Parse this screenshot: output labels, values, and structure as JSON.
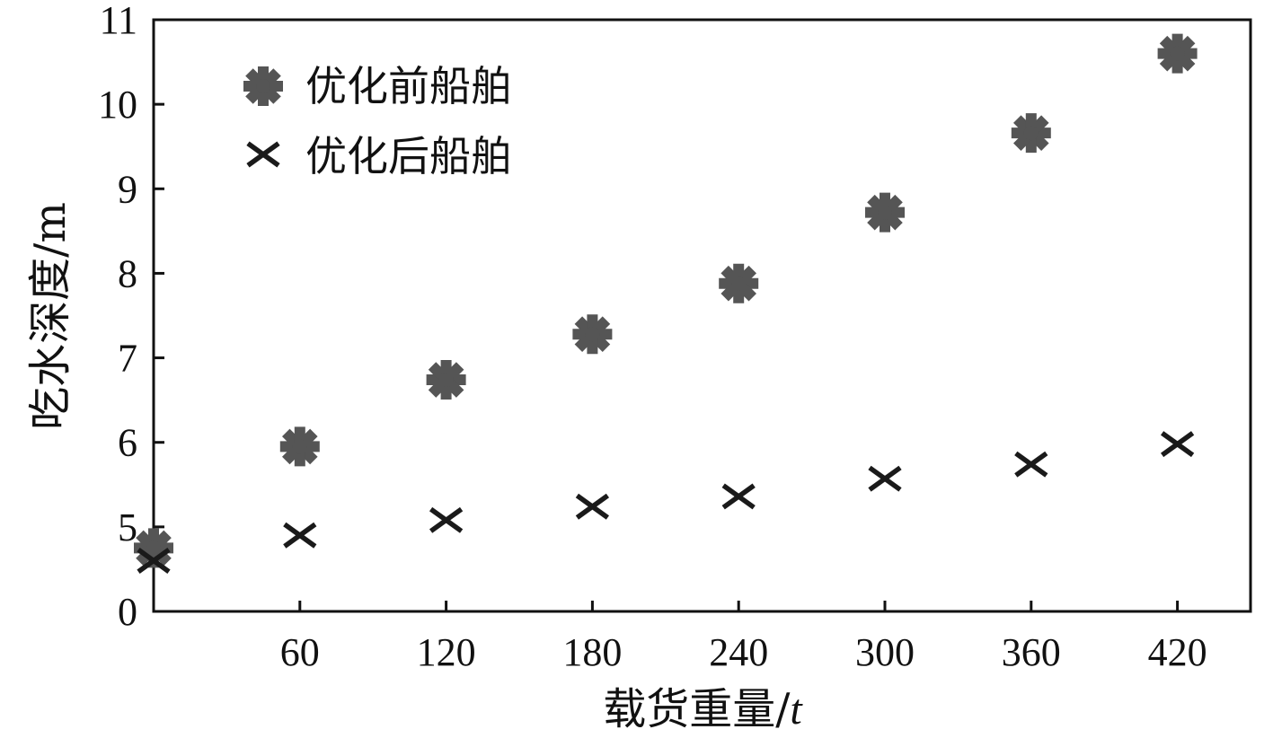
{
  "chart_data": {
    "type": "scatter",
    "xlabel": "载货重量/",
    "xlabel_unit": "t",
    "ylabel": "吃水深度/m",
    "x_ticks": [
      60,
      120,
      180,
      240,
      300,
      360,
      420
    ],
    "y_tick_labels": [
      "0",
      "5",
      "6",
      "7",
      "8",
      "9",
      "10",
      "11"
    ],
    "y_axis_break": true,
    "xlim": [
      0,
      450
    ],
    "ylim": [
      4,
      11
    ],
    "legend_position": "top-left",
    "grid": false,
    "x": [
      0,
      60,
      120,
      180,
      240,
      300,
      360,
      420
    ],
    "series": [
      {
        "name": "优化前船舶",
        "marker": "asterisk",
        "color": "#555555",
        "values": [
          4.75,
          5.95,
          6.74,
          7.28,
          7.88,
          8.72,
          9.66,
          10.6
        ]
      },
      {
        "name": "优化后船舶",
        "marker": "x",
        "color": "#1a1a1a",
        "values": [
          4.6,
          4.9,
          5.08,
          5.24,
          5.36,
          5.57,
          5.74,
          5.98
        ]
      }
    ]
  }
}
